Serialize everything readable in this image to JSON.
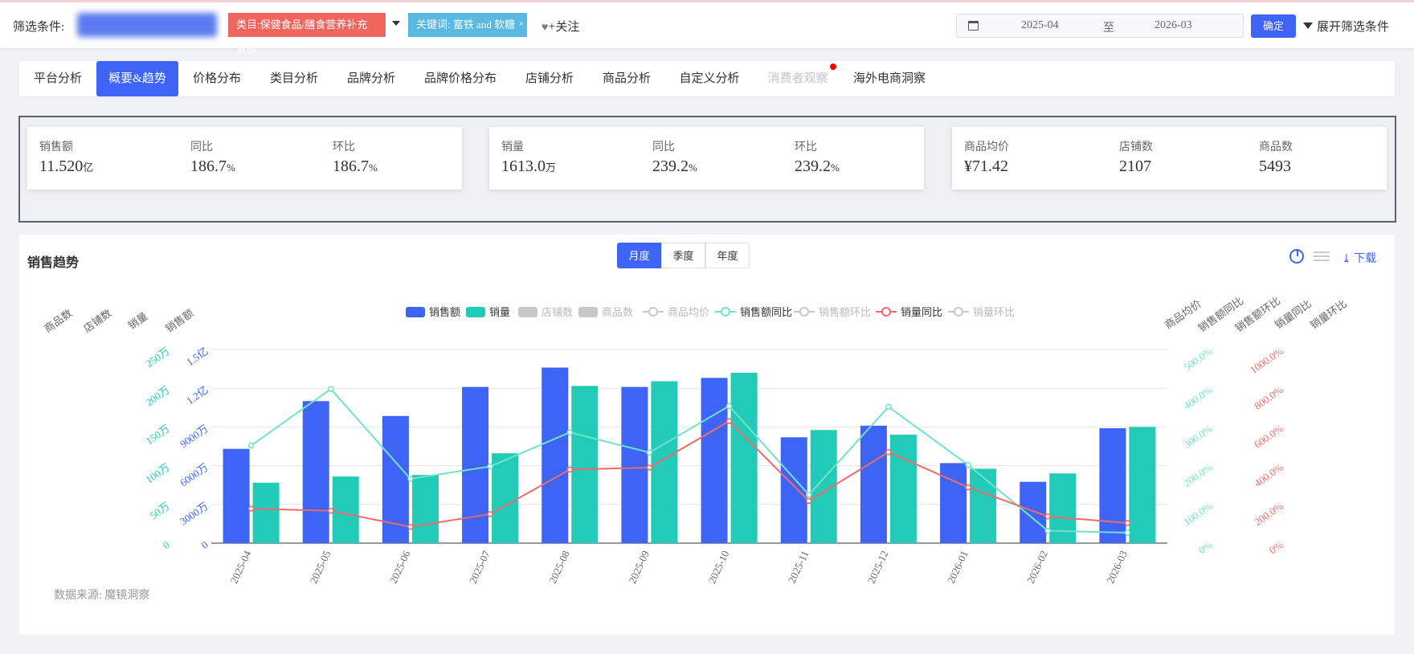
{
  "filter": {
    "label": "筛选条件:",
    "category_chip": "类目:保健食品/膳食营养补充食品",
    "keyword_chip": "关键词: 富铁 and 软糖",
    "keyword_close": "×",
    "follow": "关注",
    "date_start": "2025-04",
    "date_sep": "至",
    "date_end": "2026-03",
    "confirm": "确定",
    "expand": "展开筛选条件"
  },
  "tabs": [
    {
      "label": "平台分析"
    },
    {
      "label": "概要&趋势"
    },
    {
      "label": "价格分布"
    },
    {
      "label": "类目分析"
    },
    {
      "label": "品牌分析"
    },
    {
      "label": "品牌价格分布"
    },
    {
      "label": "店铺分析"
    },
    {
      "label": "商品分析"
    },
    {
      "label": "自定义分析"
    },
    {
      "label": "消费者观察"
    },
    {
      "label": "海外电商洞察"
    }
  ],
  "kpi": {
    "card1": [
      {
        "label": "销售额",
        "value": "11.520",
        "unit": "亿"
      },
      {
        "label": "同比",
        "value": "186.7",
        "unit": "%"
      },
      {
        "label": "环比",
        "value": "186.7",
        "unit": "%"
      }
    ],
    "card2": [
      {
        "label": "销量",
        "value": "1613.0",
        "unit": "万"
      },
      {
        "label": "同比",
        "value": "239.2",
        "unit": "%"
      },
      {
        "label": "环比",
        "value": "239.2",
        "unit": "%"
      }
    ],
    "card3": [
      {
        "label": "商品均价",
        "value": "¥71.42",
        "unit": ""
      },
      {
        "label": "店铺数",
        "value": "2107",
        "unit": ""
      },
      {
        "label": "商品数",
        "value": "5493",
        "unit": ""
      }
    ]
  },
  "panel": {
    "title": "销售趋势",
    "segments": [
      "月度",
      "季度",
      "年度"
    ],
    "download": "下载",
    "source": "数据来源: 魔镜洞察"
  },
  "colors": {
    "accent": "#3e64f5",
    "teal": "#22cbb8",
    "red_line": "#f06a6a",
    "mint_line": "#6fe3c9",
    "legend_off": "#c8c8c8",
    "legend_text_off": "#bbbbbb"
  },
  "chart_data": {
    "type": "bar",
    "categories": [
      "2025-04",
      "2025-05",
      "2025-06",
      "2025-07",
      "2025-08",
      "2025-09",
      "2025-10",
      "2025-11",
      "2025-12",
      "2026-01",
      "2026-02",
      "2026-03"
    ],
    "legend": [
      "销售额",
      "销量",
      "店铺数",
      "商品数",
      "商品均价",
      "销售额同比",
      "销售额环比",
      "销量同比",
      "销量环比"
    ],
    "legend_active": [
      true,
      true,
      false,
      false,
      false,
      true,
      false,
      true,
      false
    ],
    "left_axis_titles": [
      "商品数",
      "店铺数",
      "销量",
      "销售额"
    ],
    "right_axis_titles": [
      "商品均价",
      "销售额同比",
      "销售额环比",
      "销量同比",
      "销量环比"
    ],
    "axes": {
      "sales_amount": {
        "ticks": [
          "0",
          "3000万",
          "6000万",
          "9000万",
          "1.2亿",
          "1.5亿"
        ],
        "max": 15000
      },
      "sales_volume": {
        "ticks": [
          "0",
          "50万",
          "100万",
          "150万",
          "200万",
          "250万"
        ],
        "max": 250
      },
      "sales_amount_yoy": {
        "ticks": [
          "0%",
          "100.0%",
          "200.0%",
          "300.0%",
          "400.0%",
          "500.0%"
        ],
        "max": 500
      },
      "sales_volume_yoy": {
        "ticks": [
          "0%",
          "200.0%",
          "400.0%",
          "600.0%",
          "800.0%",
          "1000.0%"
        ],
        "max": 1000
      }
    },
    "series": [
      {
        "name": "销售额",
        "unit": "万",
        "axis": "sales_amount",
        "values": [
          7300,
          11000,
          9850,
          12100,
          13600,
          12100,
          12800,
          8200,
          9100,
          6200,
          4750,
          8900
        ]
      },
      {
        "name": "销量",
        "unit": "万",
        "axis": "sales_volume",
        "values": [
          78,
          86,
          88,
          116,
          203,
          209,
          220,
          146,
          140,
          96,
          90,
          150
        ]
      },
      {
        "name": "销售额同比",
        "unit": "%",
        "axis": "sales_amount_yoy",
        "values": [
          252,
          398,
          166,
          198,
          286,
          234,
          354,
          125,
          352,
          202,
          32,
          27
        ]
      },
      {
        "name": "销量同比",
        "unit": "%",
        "axis": "sales_volume_yoy",
        "values": [
          178,
          167,
          84,
          150,
          380,
          390,
          630,
          218,
          470,
          288,
          138,
          104
        ]
      }
    ],
    "grid": true
  }
}
